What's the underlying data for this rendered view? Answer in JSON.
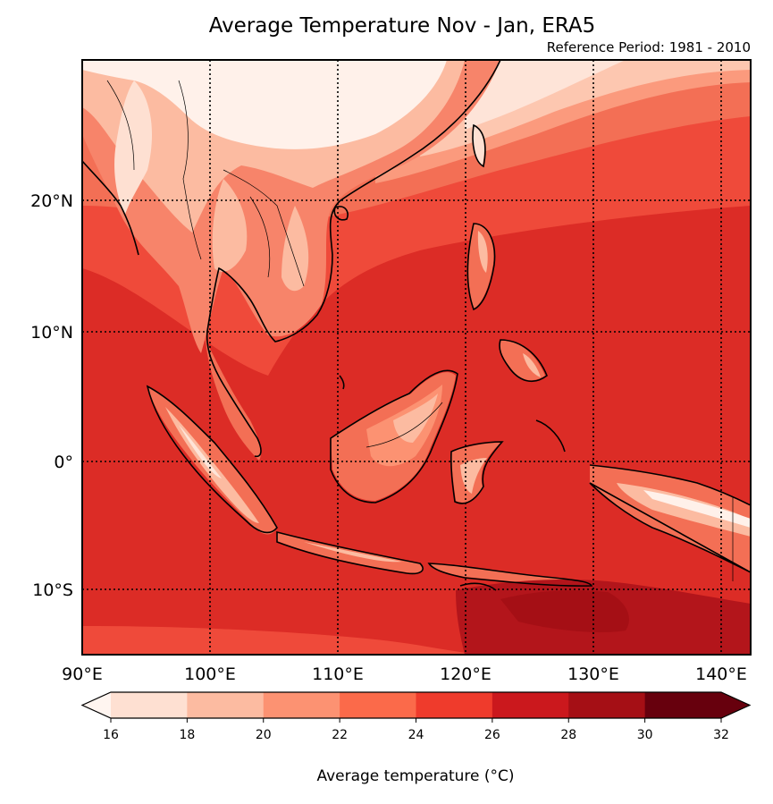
{
  "title": "Average Temperature Nov - Jan, ERA5",
  "subtitle": "Reference Period: 1981 - 2010",
  "map": {
    "lon_ticks": [
      "90°E",
      "100°E",
      "110°E",
      "120°E",
      "130°E",
      "140°E"
    ],
    "lat_ticks": [
      "20°N",
      "10°N",
      "0°",
      "10°S"
    ],
    "gridlines": "dotted"
  },
  "colorbar": {
    "label": "Average temperature (°C)",
    "ticks": [
      "16",
      "18",
      "20",
      "22",
      "24",
      "26",
      "28",
      "30",
      "32"
    ],
    "extend": "both",
    "colors": [
      "#fff5f0",
      "#fee0d2",
      "#fcbba1",
      "#fc9272",
      "#fb6a4a",
      "#ef3b2c",
      "#cb181d",
      "#a50f15",
      "#67000d"
    ]
  }
}
